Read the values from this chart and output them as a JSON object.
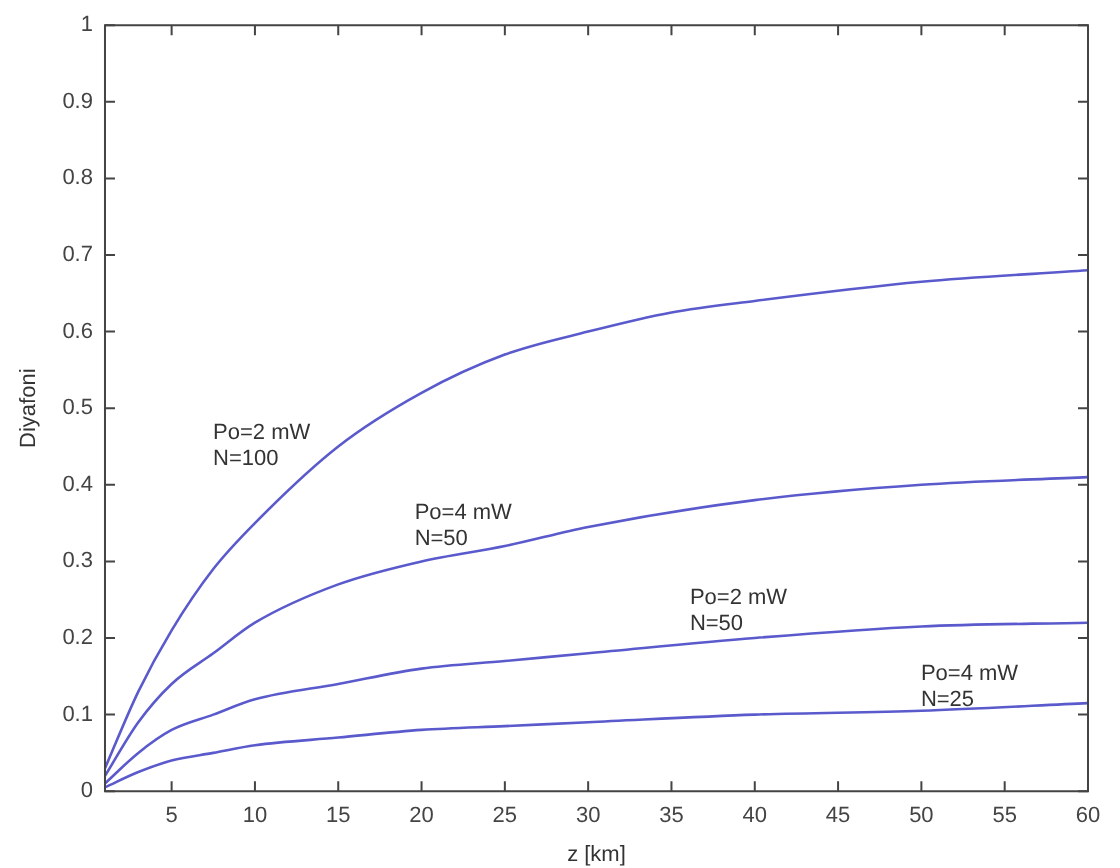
{
  "chart_data": {
    "type": "line",
    "xlabel": "z [km]",
    "ylabel": "Diyafoni",
    "xlim": [
      1,
      60
    ],
    "xticks": [
      5,
      10,
      15,
      20,
      25,
      30,
      35,
      40,
      45,
      50,
      55,
      60
    ],
    "ylim": [
      0,
      1
    ],
    "yticks": [
      0,
      0.1,
      0.2,
      0.3,
      0.4,
      0.5,
      0.6,
      0.7,
      0.8,
      0.9,
      1
    ],
    "grid": false,
    "legend": false,
    "marker": "none",
    "line_style": "solid",
    "series": [
      {
        "name": "Po=2 mW\nN=100",
        "color": "#5a5acd",
        "x": [
          1,
          3,
          5,
          7.5,
          10,
          15,
          20,
          25,
          30,
          35,
          40,
          50,
          60
        ],
        "values": [
          0.03,
          0.13,
          0.21,
          0.29,
          0.35,
          0.45,
          0.52,
          0.57,
          0.6,
          0.625,
          0.64,
          0.665,
          0.68
        ]
      },
      {
        "name": "Po=4 mW\nN=50",
        "color": "#5a5acd",
        "x": [
          1,
          3,
          5,
          7.5,
          10,
          15,
          20,
          25,
          30,
          40,
          50,
          60
        ],
        "values": [
          0.02,
          0.09,
          0.14,
          0.18,
          0.22,
          0.27,
          0.3,
          0.32,
          0.345,
          0.38,
          0.4,
          0.41
        ]
      },
      {
        "name": "Po=2 mW\nN=50",
        "color": "#5a5acd",
        "x": [
          1,
          3,
          5,
          7.5,
          10,
          15,
          20,
          25,
          30,
          40,
          50,
          60
        ],
        "values": [
          0.01,
          0.05,
          0.08,
          0.1,
          0.12,
          0.14,
          0.16,
          0.17,
          0.18,
          0.2,
          0.215,
          0.22
        ]
      },
      {
        "name": "Po=4 mW\nN=25",
        "color": "#5a5acd",
        "x": [
          1,
          3,
          5,
          7.5,
          10,
          15,
          20,
          25,
          30,
          40,
          50,
          60
        ],
        "values": [
          0.005,
          0.025,
          0.04,
          0.05,
          0.06,
          0.07,
          0.08,
          0.085,
          0.09,
          0.1,
          0.105,
          0.115
        ]
      }
    ]
  }
}
